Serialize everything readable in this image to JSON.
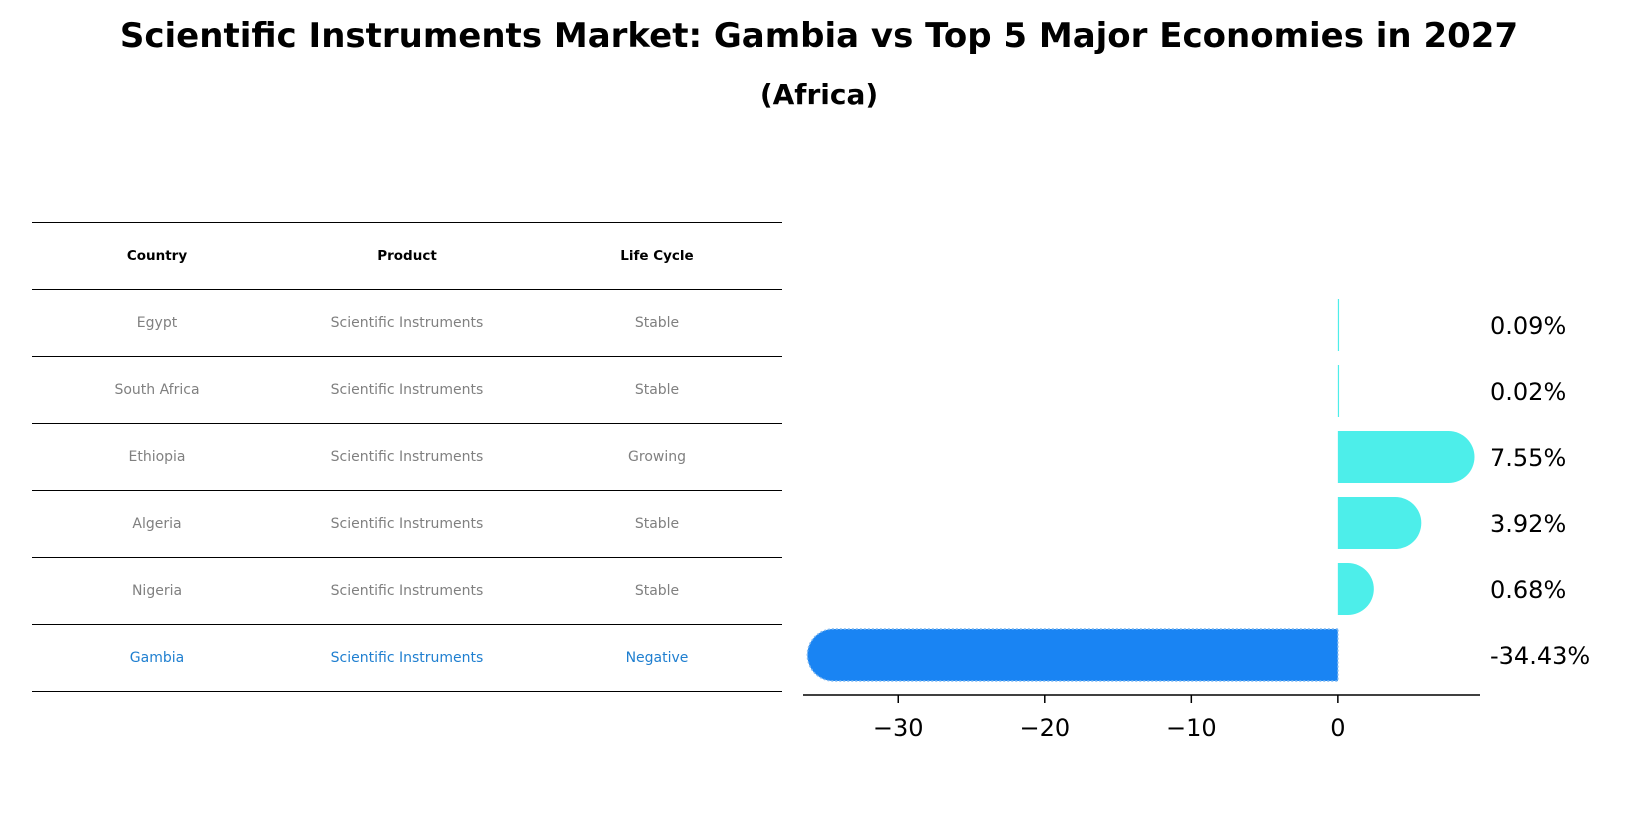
{
  "chart_data": {
    "type": "bar",
    "orientation": "horizontal",
    "title": "Scientific Instruments Market: Gambia vs Top 5 Major Economies in 2027",
    "subtitle": "(Africa)",
    "table": {
      "columns": [
        "Country",
        "Product",
        "Life Cycle"
      ],
      "rows": [
        [
          "Egypt",
          "Scientific Instruments",
          "Stable"
        ],
        [
          "South Africa",
          "Scientific Instruments",
          "Stable"
        ],
        [
          "Ethiopia",
          "Scientific Instruments",
          "Growing"
        ],
        [
          "Algeria",
          "Scientific Instruments",
          "Stable"
        ],
        [
          "Nigeria",
          "Scientific Instruments",
          "Stable"
        ],
        [
          "Gambia",
          "Scientific Instruments",
          "Negative"
        ]
      ]
    },
    "categories": [
      "Egypt",
      "South Africa",
      "Ethiopia",
      "Algeria",
      "Nigeria",
      "Gambia"
    ],
    "values": [
      0.09,
      0.02,
      7.55,
      3.92,
      0.68,
      -34.43
    ],
    "value_labels": [
      "0.09%",
      "0.02%",
      "7.55%",
      "3.92%",
      "0.68%",
      "-34.43%"
    ],
    "xlim": [
      -36.5,
      9.7
    ],
    "xticks": [
      -30,
      -20,
      -10,
      0
    ],
    "xtick_labels": [
      "−30",
      "−20",
      "−10",
      "0"
    ],
    "highlight": "Gambia",
    "colors": {
      "normal": "#4deeea",
      "highlight": "#1984f3",
      "highlight_text": "#1f7fd0",
      "muted_text": "#808080"
    }
  }
}
